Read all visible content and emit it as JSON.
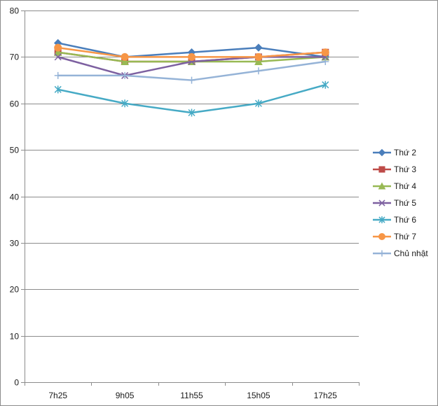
{
  "chart_data": {
    "type": "line",
    "title": "",
    "xlabel": "",
    "ylabel": "",
    "categories": [
      "7h25",
      "9h05",
      "11h55",
      "15h05",
      "17h25"
    ],
    "ylim": [
      0,
      80
    ],
    "yticks": [
      0,
      10,
      20,
      30,
      40,
      50,
      60,
      70,
      80
    ],
    "grid": "horizontal",
    "legend_position": "right",
    "series": [
      {
        "name": "Thứ 2",
        "values": [
          73,
          70,
          71,
          72,
          70
        ],
        "color": "#4A7EBB",
        "marker": "diamond"
      },
      {
        "name": "Thứ 3",
        "values": [
          71,
          69,
          69,
          70,
          71
        ],
        "color": "#BE4B48",
        "marker": "square"
      },
      {
        "name": "Thứ 4",
        "values": [
          71,
          69,
          69,
          69,
          70
        ],
        "color": "#98B954",
        "marker": "triangle"
      },
      {
        "name": "Thứ 5",
        "values": [
          70,
          66,
          69,
          70,
          70
        ],
        "color": "#7D60A0",
        "marker": "x"
      },
      {
        "name": "Thứ 6",
        "values": [
          63,
          60,
          58,
          60,
          64
        ],
        "color": "#46AAC5",
        "marker": "star"
      },
      {
        "name": "Thứ 7",
        "values": [
          72,
          70,
          70,
          70,
          71
        ],
        "color": "#F79646",
        "marker": "circle"
      },
      {
        "name": "Chủ nhật",
        "values": [
          66,
          66,
          65,
          67,
          69
        ],
        "color": "#95B3D7",
        "marker": "plus"
      }
    ]
  }
}
